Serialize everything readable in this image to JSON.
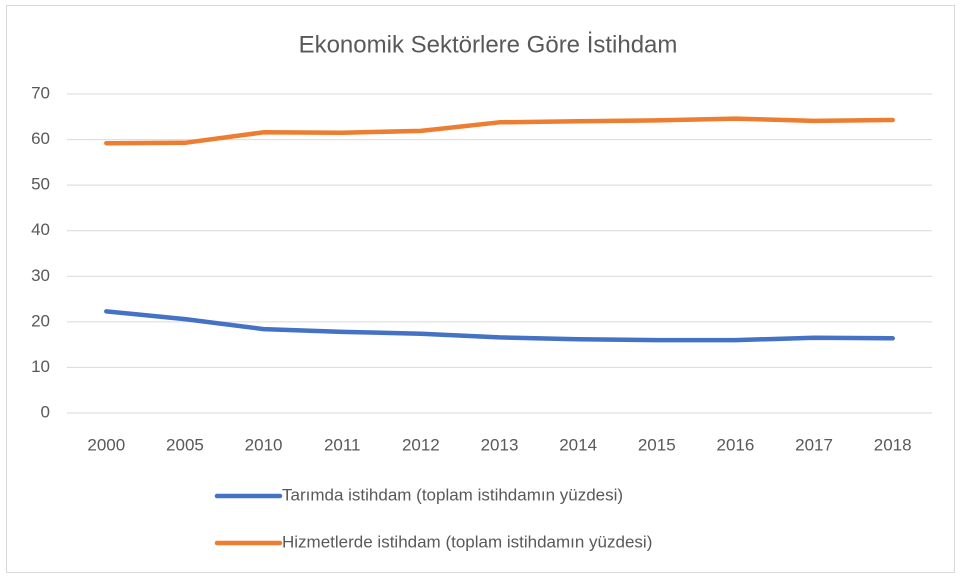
{
  "chart_data": {
    "type": "line",
    "title": "Ekonomik Sektörlere Göre İstihdam",
    "categories": [
      "2000",
      "2005",
      "2010",
      "2011",
      "2012",
      "2013",
      "2014",
      "2015",
      "2016",
      "2017",
      "2018"
    ],
    "series": [
      {
        "name": "Tarımda istihdam (toplam istihdamın yüzdesi)",
        "color": "#4472c4",
        "values": [
          22.3,
          20.6,
          18.4,
          17.8,
          17.4,
          16.6,
          16.2,
          16.0,
          16.0,
          16.5,
          16.4
        ]
      },
      {
        "name": "Hizmetlerde istihdam (toplam istihdamın yüzdesi)",
        "color": "#ed7d31",
        "values": [
          59.2,
          59.3,
          61.6,
          61.5,
          61.9,
          63.8,
          64.0,
          64.2,
          64.6,
          64.1,
          64.3
        ]
      }
    ],
    "ylim": [
      0,
      70
    ],
    "yticks": [
      0,
      10,
      20,
      30,
      40,
      50,
      60,
      70
    ],
    "grid": true,
    "legend": "bottom"
  }
}
